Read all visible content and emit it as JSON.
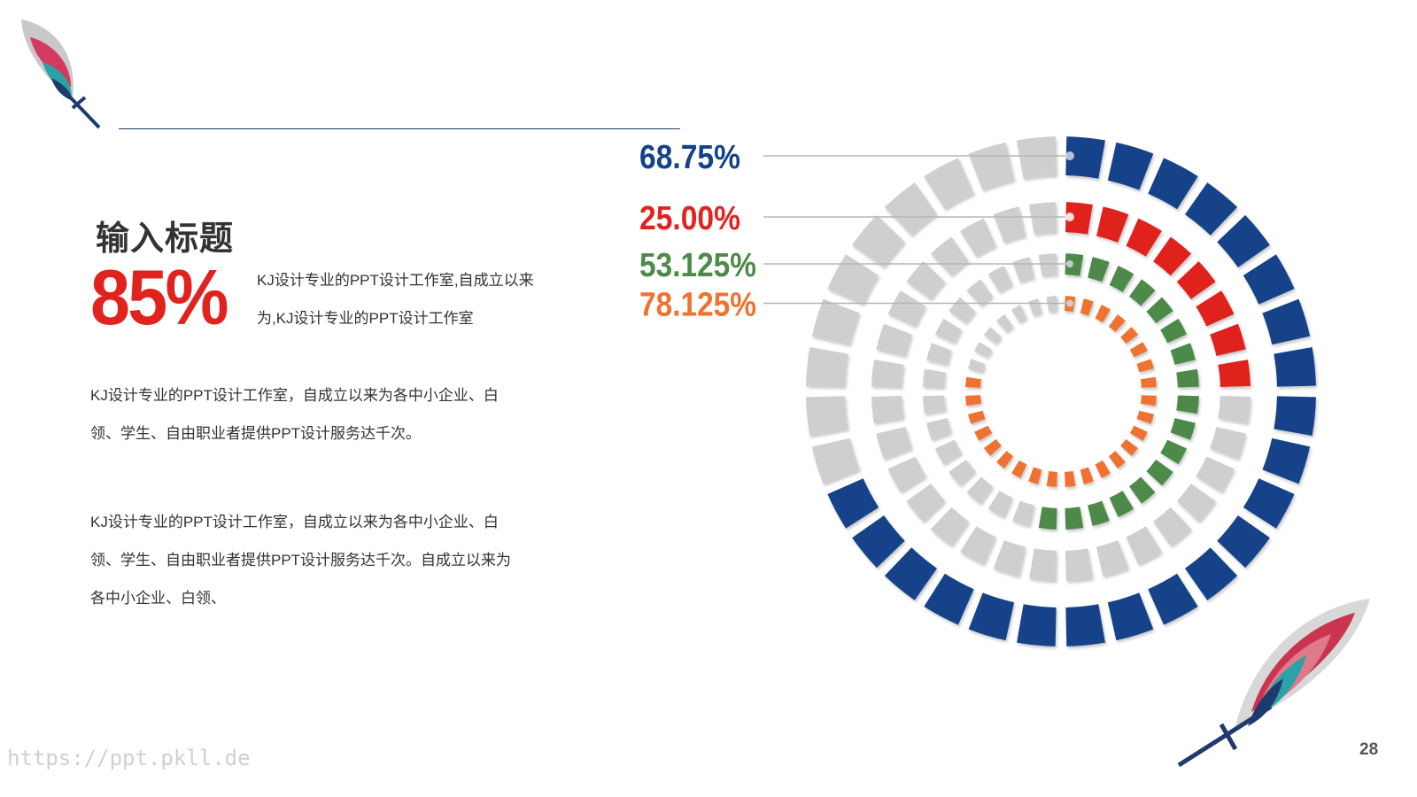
{
  "slide": {
    "title": "输入标题",
    "big_percent": "85%",
    "lead_text": "KJ设计专业的PPT设计工作室,自成立以来为,KJ设计专业的PPT设计工作室",
    "paragraph_1": "KJ设计专业的PPT设计工作室，自成立以来为各中小企业、白领、学生、自由职业者提供PPT设计服务达千次。",
    "paragraph_2": "KJ设计专业的PPT设计工作室，自成立以来为各中小企业、白领、学生、自由职业者提供PPT设计服务达千次。自成立以来为各中小企业、白领、",
    "page_number": "28",
    "watermark": "https://ppt.pkll.de"
  },
  "colors": {
    "title_text": "#333333",
    "accent_red": "#e0231f",
    "divider": "#1f3b6e",
    "ring_background": "#cfcfcf"
  },
  "chart_data": {
    "type": "radial-segment-rings",
    "series": [
      {
        "label": "68.75%",
        "value": 68.75,
        "segments": 32,
        "color": "#14428a"
      },
      {
        "label": "25.00%",
        "value": 25.0,
        "segments": 32,
        "color": "#e0231f"
      },
      {
        "label": "53.125%",
        "value": 53.125,
        "segments": 32,
        "color": "#4e8a4a"
      },
      {
        "label": "78.125%",
        "value": 78.125,
        "segments": 32,
        "color": "#ef7230"
      }
    ]
  }
}
